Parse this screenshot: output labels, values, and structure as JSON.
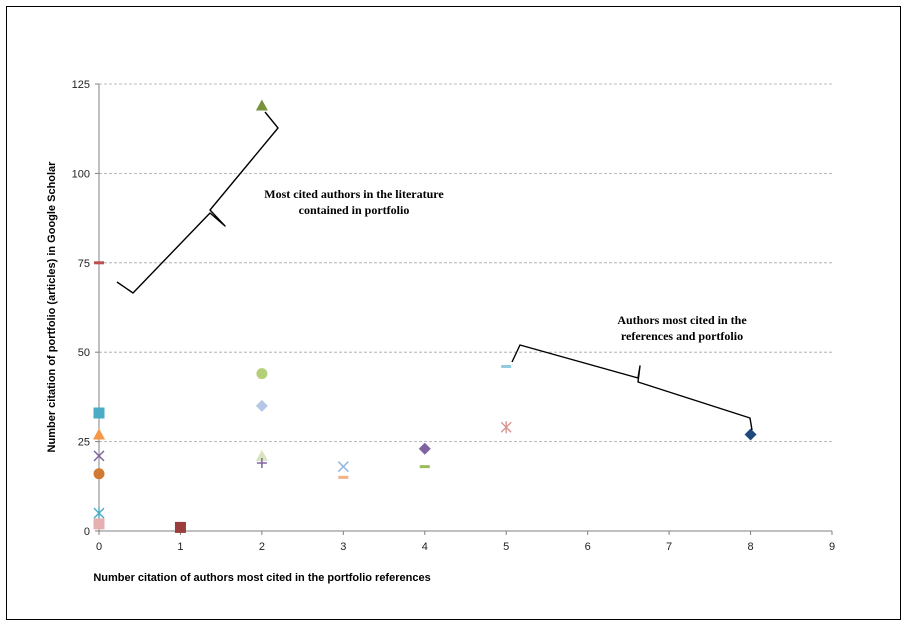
{
  "chart_data": {
    "type": "scatter",
    "xlabel": "Number citation of authors most cited in the portfolio references",
    "ylabel": "Number citation of portfolio (articles) in Google Scholar",
    "xlim": [
      0,
      9
    ],
    "ylim": [
      0,
      125
    ],
    "x_ticks": [
      "0",
      "1",
      "2",
      "3",
      "4",
      "5",
      "6",
      "7",
      "8",
      "9"
    ],
    "y_ticks": [
      "0",
      "25",
      "50",
      "75",
      "100",
      "125"
    ],
    "grid": "horizontal dashed",
    "annotations": [
      {
        "lines": [
          "Most cited authors in the literature",
          "contained in portfolio"
        ]
      },
      {
        "lines": [
          "Authors most cited in the",
          "references and portfolio"
        ]
      }
    ],
    "points": [
      {
        "x": 0,
        "y": 75,
        "marker": "dash",
        "color": "#c0504d"
      },
      {
        "x": 0,
        "y": 33,
        "marker": "square",
        "color": "#4bacc6"
      },
      {
        "x": 0,
        "y": 27,
        "marker": "triangle",
        "color": "#f79646"
      },
      {
        "x": 0,
        "y": 21,
        "marker": "x",
        "color": "#8064a2"
      },
      {
        "x": 0,
        "y": 16,
        "marker": "circle",
        "color": "#d07a33"
      },
      {
        "x": 0,
        "y": 5,
        "marker": "star",
        "color": "#4bacc6"
      },
      {
        "x": 0,
        "y": 2,
        "marker": "square",
        "color": "#e6b0b0"
      },
      {
        "x": 1,
        "y": 1,
        "marker": "square",
        "color": "#9b3d3b"
      },
      {
        "x": 2,
        "y": 119,
        "marker": "triangle",
        "color": "#77933c"
      },
      {
        "x": 2,
        "y": 44,
        "marker": "circle",
        "color": "#b3cf77"
      },
      {
        "x": 2,
        "y": 35,
        "marker": "diamond",
        "color": "#b4c7e7"
      },
      {
        "x": 2,
        "y": 21,
        "marker": "triangle",
        "color": "#d7e4bd"
      },
      {
        "x": 2,
        "y": 19,
        "marker": "plus",
        "color": "#8064a2"
      },
      {
        "x": 3,
        "y": 18,
        "marker": "x",
        "color": "#8eb4e3"
      },
      {
        "x": 3,
        "y": 15,
        "marker": "dash",
        "color": "#f4b183"
      },
      {
        "x": 4,
        "y": 23,
        "marker": "diamond",
        "color": "#8064a2"
      },
      {
        "x": 4,
        "y": 18,
        "marker": "dash",
        "color": "#9bbb59"
      },
      {
        "x": 5,
        "y": 46,
        "marker": "dash",
        "color": "#93cddd"
      },
      {
        "x": 5,
        "y": 29,
        "marker": "star",
        "color": "#d99694"
      },
      {
        "x": 8,
        "y": 27,
        "marker": "diamond",
        "color": "#1f497d"
      }
    ]
  }
}
